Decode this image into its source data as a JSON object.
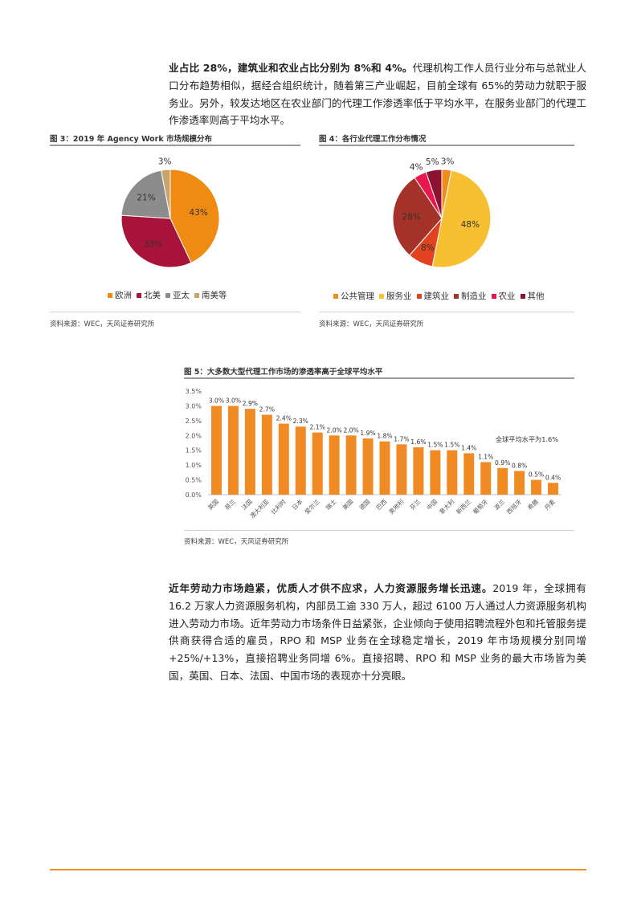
{
  "para1": {
    "bold_start": "业占比 28%，建筑业和农业占比分别为 8%和 4%。",
    "text": "代理机构工作人员行业分布与总就业人口分布趋势相似，据经合组织统计，随着第三产业崛起，目前全球有 65%的劳动力就职于服务业。另外，较发达地区在农业部门的代理工作渗透率低于平均水平，在服务业部门的代理工作渗透率则高于平均水平。"
  },
  "fig3": {
    "title": "图 3：2019 年 Agency Work 市场规模分布",
    "source": "资料来源：WEC，天风证券研究所"
  },
  "fig4": {
    "title": "图 4：各行业代理工作分布情况",
    "source": "资料来源：WEC，天风证券研究所"
  },
  "fig5": {
    "title": "图 5：大多数大型代理工作市场的渗透率高于全球平均水平",
    "source": "资料来源：WEC，天风证券研究所",
    "annotation": "全球平均水平为1.6%"
  },
  "para2": {
    "bold_start": "近年劳动力市场趋紧，优质人才供不应求，人力资源服务增长迅速。",
    "text": "2019 年，全球拥有 16.2 万家人力资源服务机构，内部员工逾 330 万人，超过 6100 万人通过人力资源服务机构进入劳动力市场。近年劳动力市场条件日益紧张，企业倾向于使用招聘流程外包和托管服务提供商获得合适的雇员，RPO 和 MSP 业务在全球稳定增长，2019 年市场规模分别同增+25%/+13%，直接招聘业务同增 6%。直接招聘、RPO 和 MSP 业务的最大市场皆为美国，英国、日本、法国、中国市场的表现亦十分亮眼。"
  },
  "chart_data": [
    {
      "type": "pie",
      "title": "图 3：2019 年 Agency Work 市场规模分布",
      "categories": [
        "欧洲",
        "北美",
        "亚太",
        "南美等"
      ],
      "values": [
        43,
        33,
        21,
        3
      ],
      "labels": [
        "43%",
        "33%",
        "21%",
        "3%"
      ],
      "colors": [
        "#ef8a12",
        "#a8133a",
        "#8c8c8c",
        "#c9a56b"
      ],
      "legend": "bottom"
    },
    {
      "type": "pie",
      "title": "图 4：各行业代理工作分布情况",
      "categories": [
        "公共管理",
        "服务业",
        "建筑业",
        "制造业",
        "农业",
        "其他"
      ],
      "values": [
        3,
        48,
        8,
        28,
        4,
        5
      ],
      "labels": [
        "3%",
        "48%",
        "8%",
        "28%",
        "4%",
        "5%"
      ],
      "colors": [
        "#f08c1c",
        "#f7c033",
        "#e2421f",
        "#a53228",
        "#e8184e",
        "#8b1230"
      ],
      "legend": "bottom"
    },
    {
      "type": "bar",
      "title": "图 5：大多数大型代理工作市场的渗透率高于全球平均水平",
      "categories": [
        "英国",
        "荷兰",
        "法国",
        "澳大利亚",
        "比利时",
        "日本",
        "爱尔兰",
        "瑞士",
        "美国",
        "德国",
        "巴西",
        "奥地利",
        "芬兰",
        "中国",
        "意大利",
        "新西兰",
        "葡萄牙",
        "波兰",
        "西班牙",
        "希腊",
        "丹麦"
      ],
      "values": [
        3.0,
        3.0,
        2.9,
        2.7,
        2.4,
        2.3,
        2.1,
        2.0,
        2.0,
        1.9,
        1.8,
        1.7,
        1.6,
        1.5,
        1.5,
        1.4,
        1.1,
        0.9,
        0.8,
        0.5,
        0.4
      ],
      "data_labels": [
        "3.0%",
        "3.0%",
        "2.9%",
        "2.7%",
        "2.4%",
        "2.3%",
        "2.1%",
        "2.0%",
        "2.0%",
        "1.9%",
        "1.8%",
        "1.7%",
        "1.6%",
        "1.5%",
        "1.5%",
        "1.4%",
        "1.1%",
        "0.9%",
        "0.8%",
        "0.5%",
        "0.4%"
      ],
      "yticks": [
        "0.0%",
        "0.5%",
        "1.0%",
        "1.5%",
        "2.0%",
        "2.5%",
        "3.0%",
        "3.5%"
      ],
      "ylim": [
        0,
        3.5
      ],
      "bar_color": "#f08a24",
      "annotation": "全球平均水平为1.6%",
      "grid": false
    }
  ]
}
